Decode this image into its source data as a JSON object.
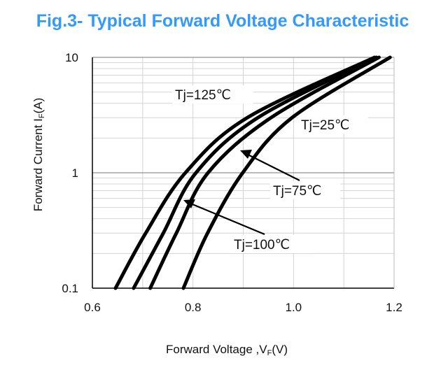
{
  "chart_data": {
    "type": "line",
    "title": "Fig.3- Typical Forward Voltage Characteristic",
    "xlabel": {
      "prefix": "Forward Voltage ,V",
      "sub": "F",
      "suffix": "(V)"
    },
    "ylabel": {
      "prefix": "Forward Current I",
      "sub": "F",
      "suffix": "(A)"
    },
    "xlim": [
      0.6,
      1.2
    ],
    "ylim": [
      0.1,
      10
    ],
    "yscale": "log",
    "grid": true,
    "xticks": [
      0.6,
      0.8,
      1.0,
      1.2
    ],
    "xtick_labels": [
      "0.6",
      "0.8",
      "1.0",
      "1.2"
    ],
    "yticks": [
      0.1,
      1,
      10
    ],
    "ytick_labels": [
      "0.1",
      "1",
      "10"
    ],
    "series": [
      {
        "name": "Tj=125℃",
        "current_A": [
          0.1,
          0.3,
          1,
          3,
          10
        ],
        "voltage_V": [
          0.646,
          0.706,
          0.785,
          0.908,
          1.161
        ]
      },
      {
        "name": "Tj=100℃",
        "current_A": [
          0.1,
          0.3,
          1,
          3,
          10
        ],
        "voltage_V": [
          0.682,
          0.741,
          0.806,
          0.929,
          1.165
        ]
      },
      {
        "name": "Tj=75℃",
        "current_A": [
          0.1,
          0.3,
          1,
          3,
          10
        ],
        "voltage_V": [
          0.715,
          0.767,
          0.83,
          0.955,
          1.17
        ]
      },
      {
        "name": "Tj=25℃",
        "current_A": [
          0.1,
          0.3,
          1,
          3,
          10
        ],
        "voltage_V": [
          0.781,
          0.829,
          0.899,
          0.997,
          1.192
        ]
      }
    ],
    "annotations": [
      "Tj=125℃",
      "Tj=25℃",
      "Tj=75℃",
      "Tj=100℃"
    ]
  }
}
